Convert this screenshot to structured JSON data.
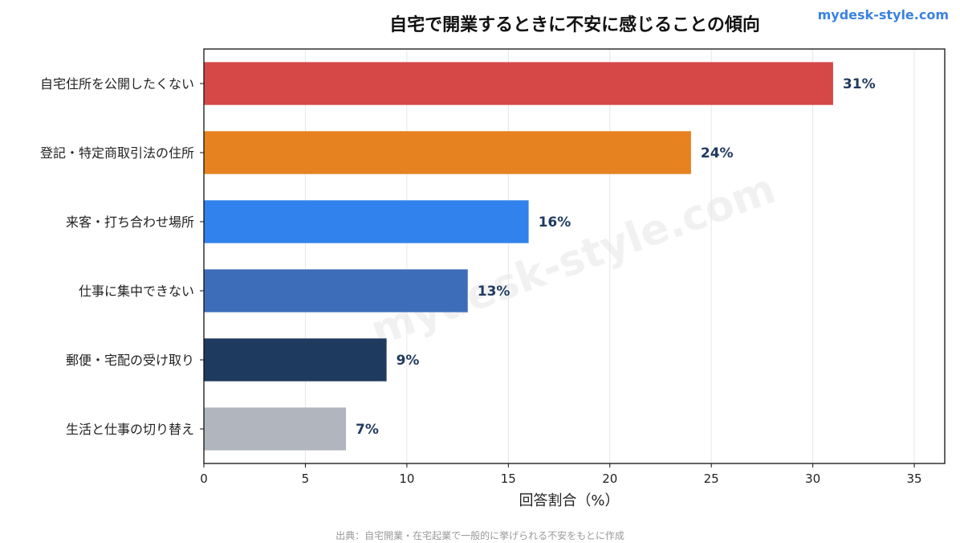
{
  "brand": {
    "text": "mydesk-style.com",
    "color": "#3b82e0"
  },
  "watermark": "mydesk-style.com",
  "source_note": "出典：自宅開業・在宅起業で一般的に挙げられる不安をもとに作成",
  "chart_data": {
    "type": "bar",
    "orientation": "horizontal",
    "title": "自宅で開業するときに不安に感じることの傾向",
    "xlabel": "回答割合（%）",
    "ylabel": "",
    "xlim": [
      0,
      36.5
    ],
    "xticks": [
      0,
      5,
      10,
      15,
      20,
      25,
      30,
      35
    ],
    "grid": "vertical",
    "categories": [
      "自宅住所を公開したくない",
      "登記・特定商取引法の住所",
      "来客・打ち合わせ場所",
      "仕事に集中できない",
      "郵便・宅配の受け取り",
      "生活と仕事の切り替え"
    ],
    "values": [
      31,
      24,
      16,
      13,
      9,
      7
    ],
    "value_labels": [
      "31%",
      "24%",
      "16%",
      "13%",
      "9%",
      "7%"
    ],
    "colors": [
      "#d64848",
      "#e6821f",
      "#3182ec",
      "#3d6db8",
      "#1f3a5f",
      "#b0b5be"
    ],
    "value_label_color": "#1f3a5f"
  }
}
